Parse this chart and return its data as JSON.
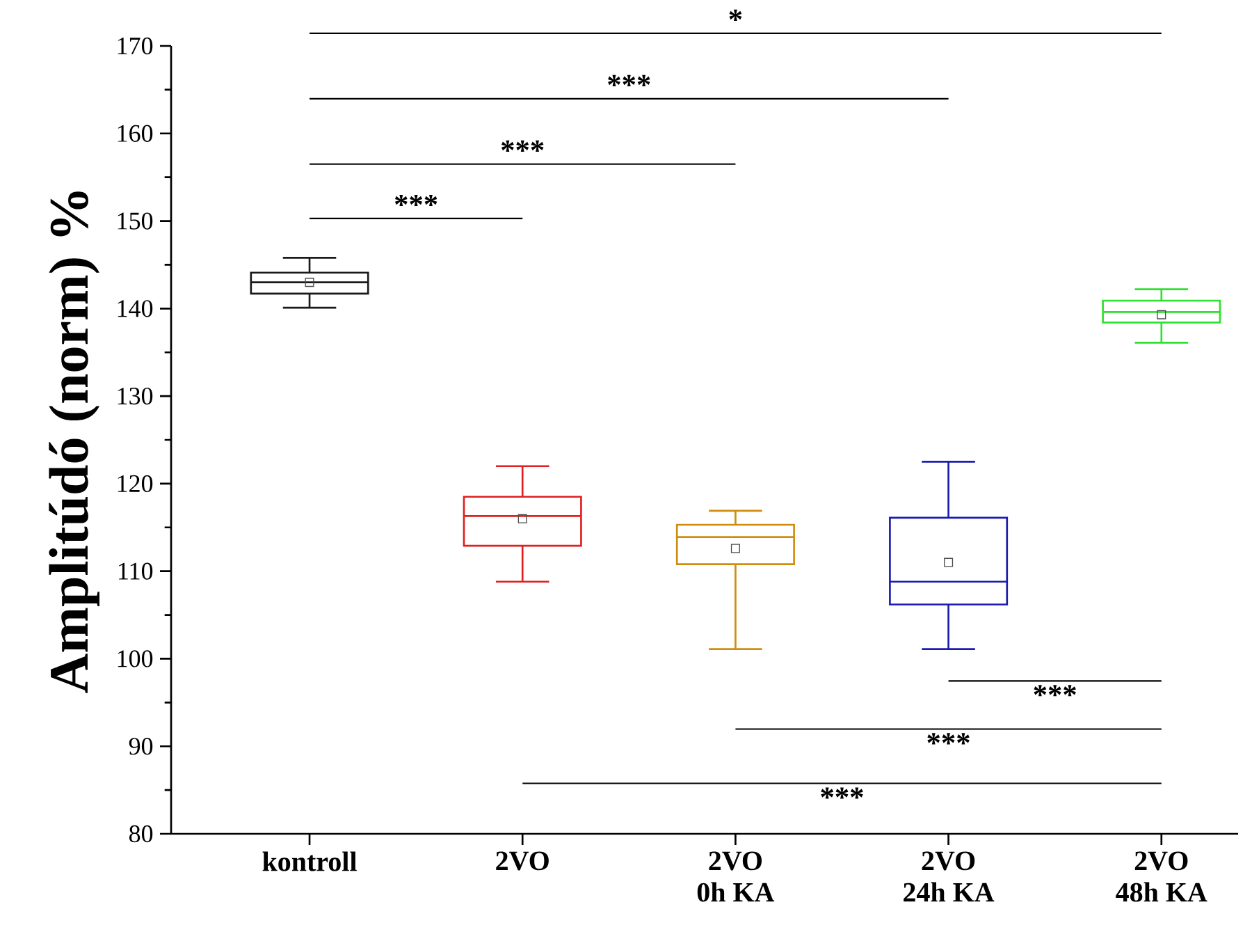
{
  "chart_data": {
    "type": "box",
    "ylabel": "Amplitúdó (norm) %",
    "categories": [
      "kontroll",
      "2VO",
      "2VO\n0h KA",
      "2VO\n24h KA",
      "2VO\n48h KA"
    ],
    "colors": [
      "#1a1a1a",
      "#e02020",
      "#d08c10",
      "#1c1cb0",
      "#30e030"
    ],
    "boxes": [
      {
        "low": 140.1,
        "q1": 141.7,
        "median": 143,
        "q3": 144.1,
        "high": 145.8,
        "mean": 143
      },
      {
        "low": 108.8,
        "q1": 112.9,
        "median": 116.3,
        "q3": 118.5,
        "high": 122,
        "mean": 116
      },
      {
        "low": 101.1,
        "q1": 110.8,
        "median": 113.9,
        "q3": 115.3,
        "high": 116.9,
        "mean": 112.6
      },
      {
        "low": 101.1,
        "q1": 106.2,
        "median": 108.8,
        "q3": 116.1,
        "high": 122.5,
        "mean": 111
      },
      {
        "low": 136.1,
        "q1": 138.4,
        "median": 139.6,
        "q3": 140.9,
        "high": 142.2,
        "mean": 139.3
      }
    ],
    "ylim": [
      80,
      170
    ],
    "yticks": [
      80,
      90,
      100,
      110,
      120,
      130,
      140,
      150,
      160,
      170
    ],
    "annotations": [
      "***",
      "***",
      "***",
      "*",
      "***",
      "***",
      "***"
    ]
  }
}
